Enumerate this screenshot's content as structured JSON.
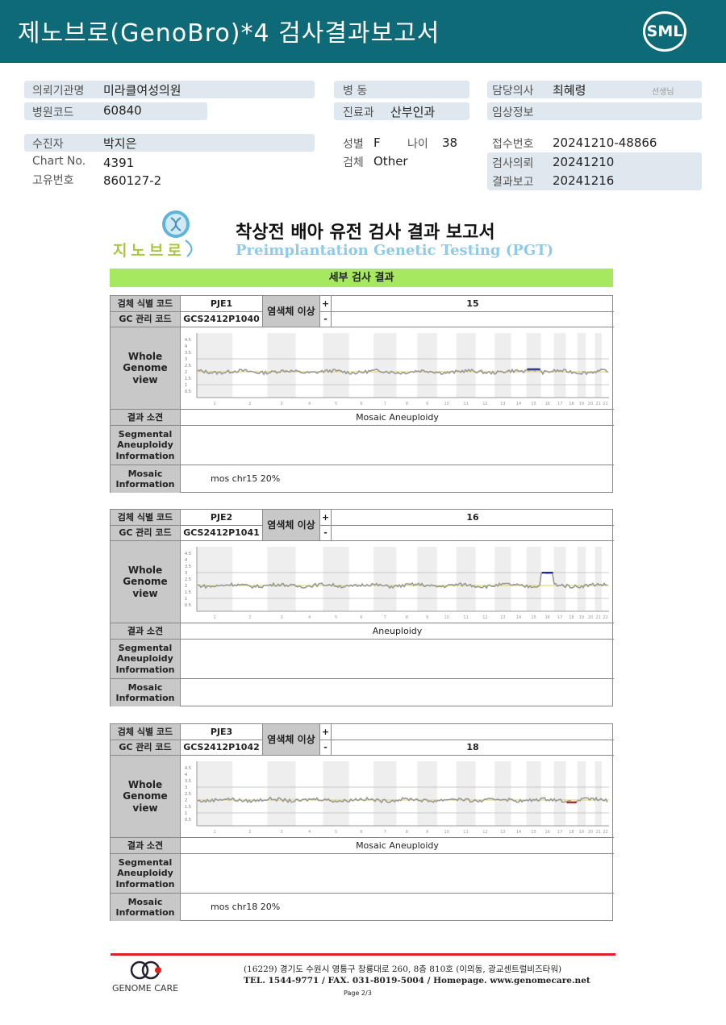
{
  "header": {
    "title": "제노브로(GenoBro)*4 검사결과보고서",
    "brand_logo": "SML"
  },
  "patient_info": {
    "institution_label": "의뢰기관명",
    "institution": "미라클여성의원",
    "hospital_code_label": "병원코드",
    "hospital_code": "60840",
    "ward_label": "병 동",
    "ward": "",
    "department_label": "진료과",
    "department": "산부인과",
    "doctor_label": "담당의사",
    "doctor": "최혜령",
    "doctor_suffix": "선생님",
    "clinical_label": "임상정보",
    "clinical": "",
    "patient_label": "수진자",
    "patient": "박지은",
    "chart_label": "Chart No.",
    "chart": "4391",
    "id_label": "고유번호",
    "id": "860127-2",
    "sex_label": "성별",
    "sex": "F",
    "age_label": "나이",
    "age": "38",
    "specimen_label": "검체",
    "specimen": "Other",
    "receipt_label": "접수번호",
    "receipt": "20241210-48866",
    "request_label": "검사의뢰",
    "request": "20241210",
    "report_label": "결과보고",
    "report": "20241216"
  },
  "report": {
    "logo_text": "지노브로",
    "title_ko": "착상전 배아 유전 검사 결과 보고서",
    "title_en": "Preimplantation Genetic Testing (PGT)",
    "section": "세부 검사 결과"
  },
  "labels": {
    "specimen_code": "검체 식별 코드",
    "gc_code": "GC 관리 코드",
    "chrom_abn": "염색체 이상",
    "plus": "+",
    "minus": "-",
    "genome_view": "Whole Genome view",
    "finding": "결과 소견",
    "segmental": "Segmental Aneuploidy Information",
    "mosaic": "Mosaic Information"
  },
  "plot": {
    "y_ticks": [
      "4.5",
      "4",
      "3.5",
      "3",
      "2.5",
      "2",
      "1.5",
      "1",
      "0.5"
    ],
    "chromosomes": [
      "1",
      "2",
      "3",
      "4",
      "5",
      "6",
      "7",
      "8",
      "9",
      "10",
      "11",
      "12",
      "13",
      "14",
      "15",
      "16",
      "17",
      "18",
      "19",
      "20",
      "21",
      "22"
    ],
    "colors": {
      "gain": "#1a2a9a",
      "loss": "#b02020",
      "trace": "#999999",
      "baseline": "#e0d050"
    }
  },
  "samples": [
    {
      "code": "PJE1",
      "gc": "GCS2412P1040",
      "plus": "15",
      "minus": "",
      "finding": "Mosaic Aneuploidy",
      "segmental": "",
      "mosaic": "mos chr15 20%",
      "abnormal": {
        "chr": "15",
        "copy": 2.2,
        "type": "gain"
      }
    },
    {
      "code": "PJE2",
      "gc": "GCS2412P1041",
      "plus": "16",
      "minus": "",
      "finding": "Aneuploidy",
      "segmental": "",
      "mosaic": "",
      "abnormal": {
        "chr": "16",
        "copy": 3,
        "type": "gain"
      }
    },
    {
      "code": "PJE3",
      "gc": "GCS2412P1042",
      "plus": "",
      "minus": "18",
      "finding": "Mosaic Aneuploidy",
      "segmental": "",
      "mosaic": "mos chr18 20%",
      "abnormal": {
        "chr": "18",
        "copy": 1.8,
        "type": "loss"
      }
    }
  ],
  "footer": {
    "company": "GENOME CARE",
    "address": "(16229) 경기도 수원시 영통구 창룡대로 260, 8층 810호 (이의동, 광교센트럴비즈타워)",
    "contact": "TEL. 1544-9771 / FAX. 031-8019-5004 / Homepage. www.genomecare.net",
    "page": "Page 2/3"
  }
}
